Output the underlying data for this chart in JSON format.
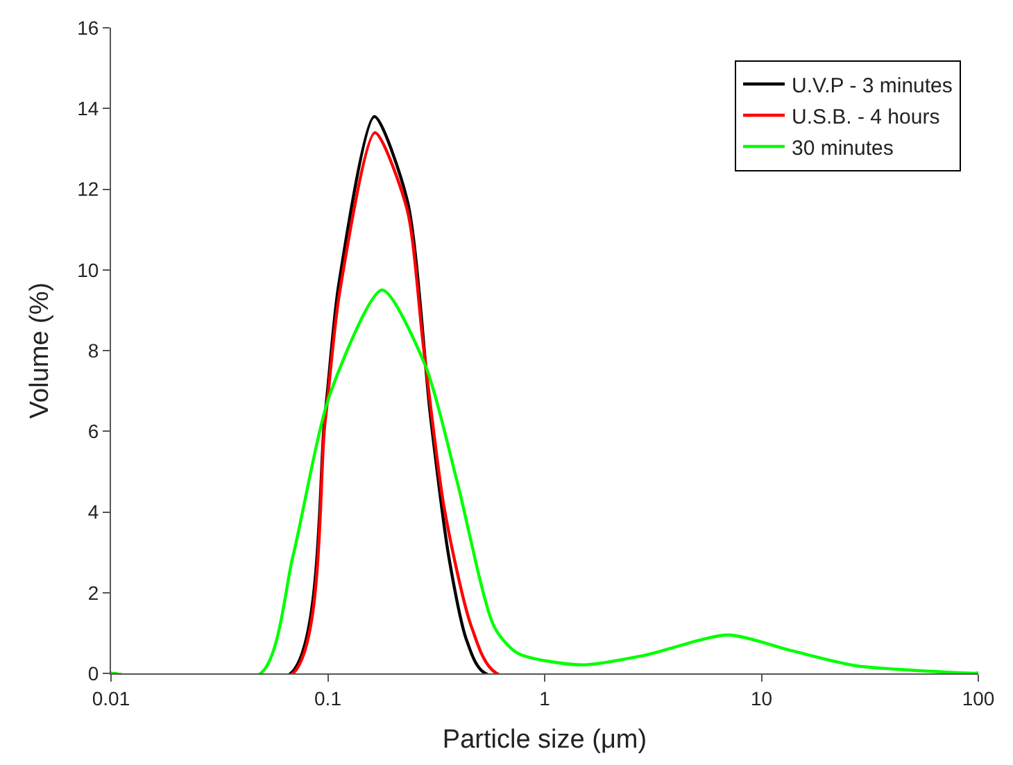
{
  "chart_data": {
    "type": "line",
    "xlabel": "Particle size (μm)",
    "ylabel": "Volume (%)",
    "log": "x",
    "xlim": [
      0.01,
      100
    ],
    "xticks": [
      0.01,
      0.1,
      1,
      10,
      100
    ],
    "ylim": [
      0,
      16
    ],
    "yticks": [
      0,
      2,
      4,
      6,
      8,
      10,
      12,
      14,
      16
    ],
    "legend": "top right",
    "marker": "none",
    "line_style": "solid",
    "series": [
      {
        "name": "U.V.P - 3 minutes",
        "color": "#000000",
        "x": [
          0.01,
          0.0675,
          0.097,
          0.112,
          0.164,
          0.233,
          0.297,
          0.361,
          0.438,
          0.532,
          100
        ],
        "values": [
          0,
          0,
          6.4,
          9.6,
          13.8,
          11.7,
          6.4,
          2.9,
          0.8,
          0,
          0
        ]
      },
      {
        "name": "U.S.B. - 4 hours",
        "color": "#ff0000",
        "x": [
          0.01,
          0.069,
          0.097,
          0.113,
          0.165,
          0.232,
          0.276,
          0.344,
          0.46,
          0.6,
          100
        ],
        "values": [
          0,
          0,
          6.2,
          9.4,
          13.4,
          11.5,
          8.1,
          4.1,
          1.15,
          0,
          0
        ]
      },
      {
        "name": "30 minutes",
        "color": "#00ff00",
        "x": [
          0.01,
          0.049,
          0.069,
          0.102,
          0.178,
          0.283,
          0.397,
          0.586,
          0.75,
          1.48,
          2.9,
          7.0,
          13.8,
          27.2,
          96,
          100
        ],
        "values": [
          0,
          0,
          2.9,
          6.9,
          9.5,
          7.6,
          4.7,
          1.15,
          0.5,
          0.21,
          0.45,
          0.95,
          0.56,
          0.19,
          0,
          0
        ]
      }
    ]
  }
}
